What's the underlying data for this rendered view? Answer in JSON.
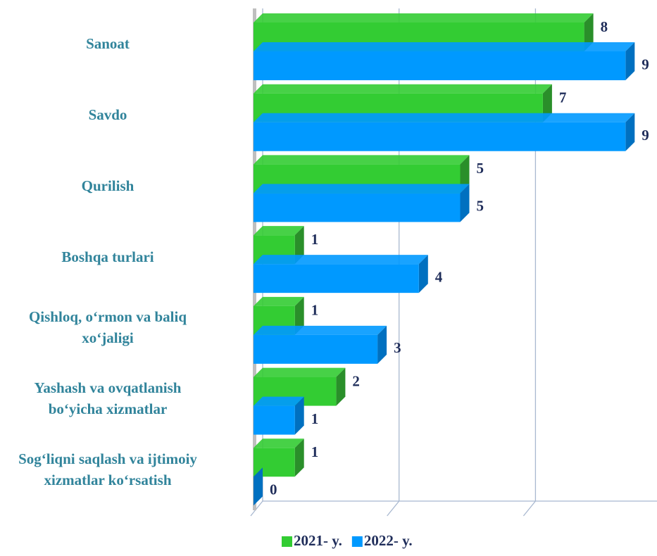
{
  "chart_data": {
    "type": "bar3d",
    "orientation": "horizontal",
    "categories": [
      "Sanoat",
      "Savdo",
      "Qurilish",
      "Boshqa turlari",
      "Qishloq, o‘rmon va baliq\nxo‘jaligi",
      "Yashash va ovqatlanish\nbo‘yicha xizmatlar",
      "Sog‘liqni saqlash va ijtimoiy\nxizmatlar ko‘rsatish"
    ],
    "series": [
      {
        "name": "2021- y.",
        "color": "#33cc33",
        "side_color": "#2a8f2a",
        "values": [
          8,
          7,
          5,
          1,
          1,
          2,
          1
        ]
      },
      {
        "name": "2022- y.",
        "color": "#0099ff",
        "side_color": "#0070c0",
        "values": [
          9,
          9,
          5,
          4,
          3,
          1,
          0
        ]
      }
    ],
    "xlim": [
      0,
      9.9
    ],
    "xticks": [
      0,
      3.3,
      6.6,
      9.9
    ],
    "grid": true,
    "legend": "bottom"
  }
}
